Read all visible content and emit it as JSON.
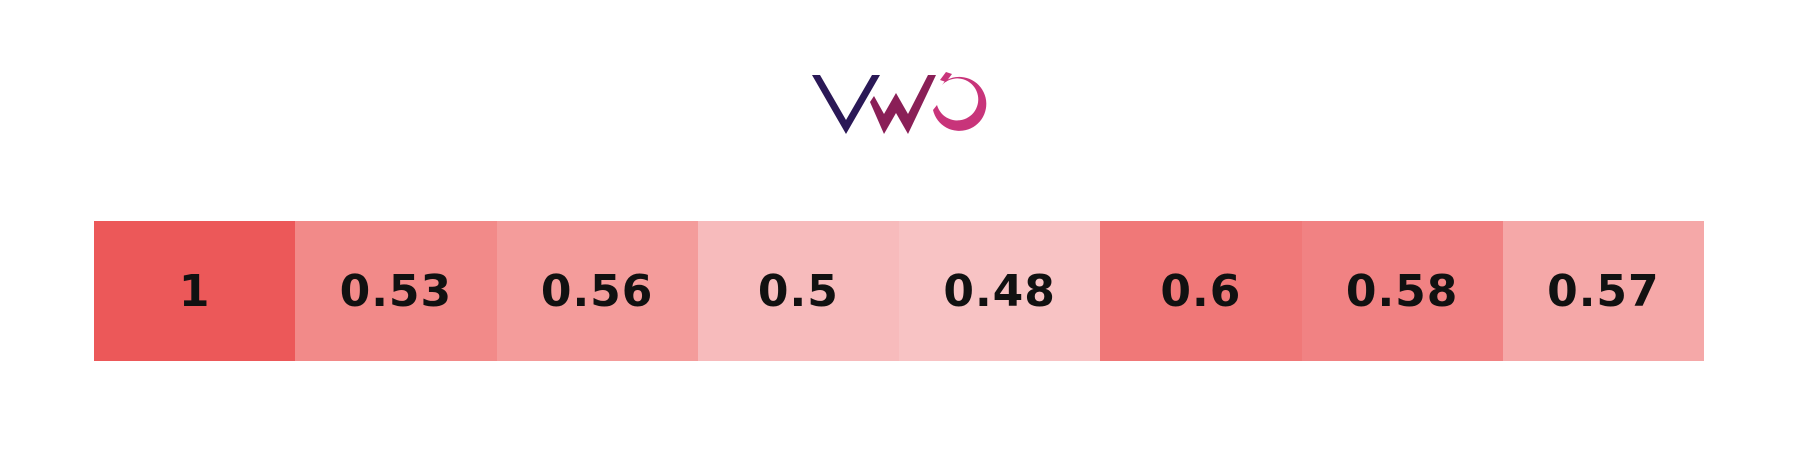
{
  "brand": {
    "logo_icon": "vwo-logo-icon",
    "colors": {
      "v": "#2a1856",
      "w": "#8a1f57",
      "o": "#c8347a"
    }
  },
  "chart_data": {
    "type": "heatmap",
    "title": "",
    "xlabel": "",
    "ylabel": "",
    "values": [
      1,
      0.53,
      0.56,
      0.5,
      0.48,
      0.6,
      0.58,
      0.57
    ],
    "labels": [
      "1",
      "0.53",
      "0.56",
      "0.5",
      "0.48",
      "0.6",
      "0.58",
      "0.57"
    ],
    "colors": [
      "#ec5859",
      "#f28a89",
      "#f49c9b",
      "#f7bbbc",
      "#f8c3c4",
      "#f07878",
      "#f18283",
      "#f5a8a8"
    ]
  }
}
